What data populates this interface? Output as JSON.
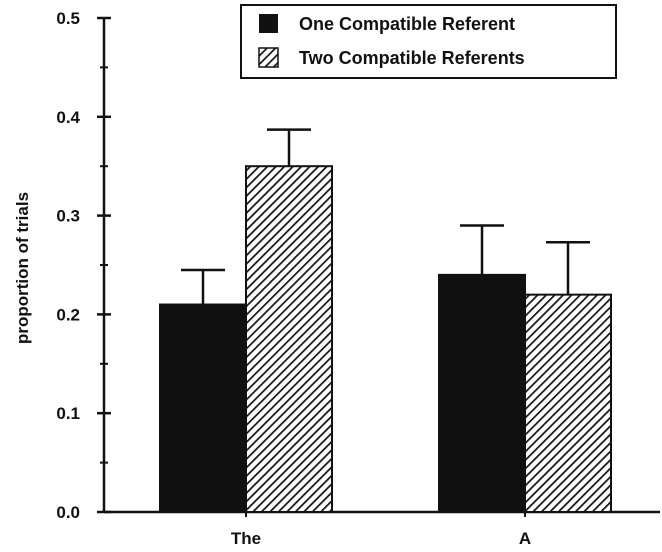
{
  "chart_data": {
    "type": "bar",
    "categories": [
      "The",
      "A"
    ],
    "series": [
      {
        "name": "One Compatible Referent",
        "values": [
          0.21,
          0.24
        ],
        "error": [
          0.035,
          0.05
        ],
        "fill": "solid",
        "color": "#111111"
      },
      {
        "name": "Two Compatible Referents",
        "values": [
          0.35,
          0.22
        ],
        "error": [
          0.037,
          0.053
        ],
        "fill": "hatched",
        "color": "#111111"
      }
    ],
    "xlabel": "",
    "ylabel": "proportion of trials",
    "ylim": [
      0,
      0.5
    ],
    "yticks": [
      "0.0",
      "0.1",
      "0.2",
      "0.3",
      "0.4",
      "0.5"
    ],
    "grid": false,
    "legend_position": "top-right"
  }
}
